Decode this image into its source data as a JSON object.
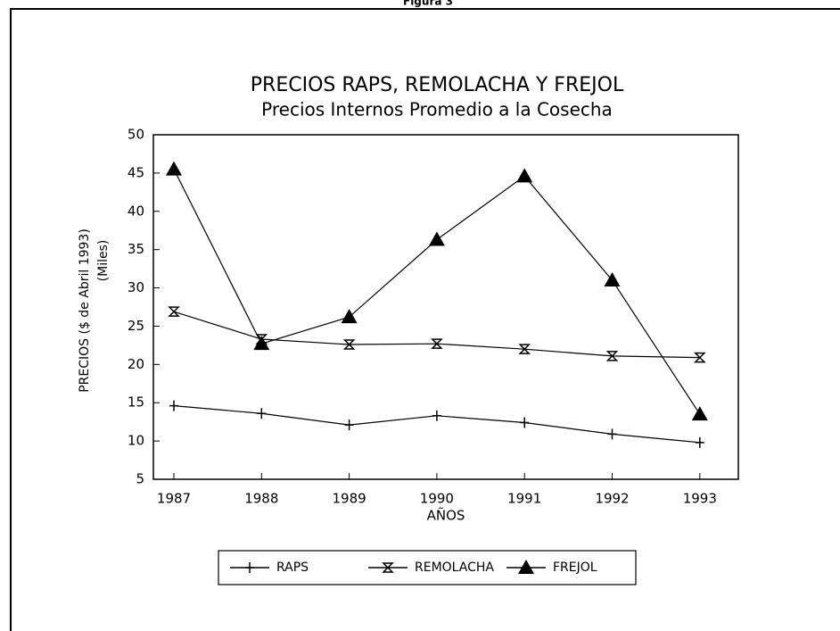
{
  "header": "Figura 3",
  "chart_data": {
    "type": "line",
    "title": "PRECIOS RAPS,  REMOLACHA Y FREJOL",
    "subtitle": "Precios Internos Promedio a la Cosecha",
    "ylabel": "PRECIOS ($ de Abril 1993)",
    "ylabel2": "(Miles)",
    "xlabel": "AÑOS",
    "categories": [
      "1987",
      "1988",
      "1989",
      "1990",
      "1991",
      "1992",
      "1993"
    ],
    "ylim": [
      5,
      50
    ],
    "yticks": [
      5,
      10,
      15,
      20,
      25,
      30,
      35,
      40,
      45,
      50
    ],
    "series": [
      {
        "name": "RAPS",
        "color": "#000000",
        "marker": "plus",
        "values": [
          14.6,
          13.6,
          12.1,
          13.3,
          12.4,
          10.9,
          9.8
        ]
      },
      {
        "name": "REMOLACHA",
        "color": "#000000",
        "marker": "hourglass",
        "values": [
          26.9,
          23.3,
          22.6,
          22.7,
          22.0,
          21.1,
          20.9
        ]
      },
      {
        "name": "FREJOL",
        "color": "#000000",
        "marker": "triangle",
        "values": [
          45.5,
          22.7,
          26.2,
          36.3,
          44.6,
          31.0,
          13.5
        ]
      }
    ]
  }
}
